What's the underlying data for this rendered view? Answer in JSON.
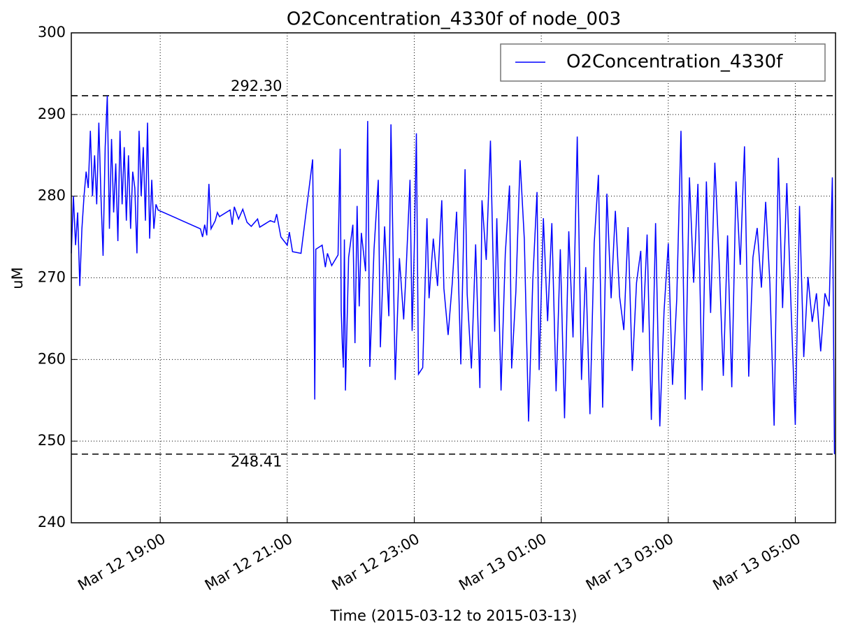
{
  "chart_data": {
    "type": "line",
    "title": "O2Concentration_4330f of node_003",
    "xlabel": "Time (2015-03-12 to 2015-03-13)",
    "ylabel": "uM",
    "ylim": [
      240,
      300
    ],
    "yticks": [
      240,
      250,
      260,
      270,
      280,
      290,
      300
    ],
    "xlim": [
      "2015-03-12 17:36",
      "2015-03-13 05:38"
    ],
    "xticks": [
      {
        "value": "2015-03-12 19:00",
        "label": "Mar 12 19:00"
      },
      {
        "value": "2015-03-12 21:00",
        "label": "Mar 12 21:00"
      },
      {
        "value": "2015-03-12 23:00",
        "label": "Mar 12 23:00"
      },
      {
        "value": "2015-03-13 01:00",
        "label": "Mar 13 01:00"
      },
      {
        "value": "2015-03-13 03:00",
        "label": "Mar 13 03:00"
      },
      {
        "value": "2015-03-13 05:00",
        "label": "Mar 13 05:00"
      }
    ],
    "grid": true,
    "legend": "upper right",
    "hlines": [
      {
        "value": 292.3,
        "label": "292.30"
      },
      {
        "value": 248.41,
        "label": "248.41"
      }
    ],
    "x": [
      "2015-03-12 17:36",
      "2015-03-12 17:38",
      "2015-03-12 17:40",
      "2015-03-12 17:42",
      "2015-03-12 17:44",
      "2015-03-12 17:46",
      "2015-03-12 17:48",
      "2015-03-12 17:50",
      "2015-03-12 17:52",
      "2015-03-12 17:54",
      "2015-03-12 17:56",
      "2015-03-12 17:58",
      "2015-03-12 18:00",
      "2015-03-12 18:02",
      "2015-03-12 18:04",
      "2015-03-12 18:06",
      "2015-03-12 18:08",
      "2015-03-12 18:10",
      "2015-03-12 18:12",
      "2015-03-12 18:14",
      "2015-03-12 18:16",
      "2015-03-12 18:18",
      "2015-03-12 18:20",
      "2015-03-12 18:22",
      "2015-03-12 18:24",
      "2015-03-12 18:26",
      "2015-03-12 18:28",
      "2015-03-12 18:30",
      "2015-03-12 18:32",
      "2015-03-12 18:34",
      "2015-03-12 18:36",
      "2015-03-12 18:38",
      "2015-03-12 18:40",
      "2015-03-12 18:42",
      "2015-03-12 18:44",
      "2015-03-12 18:46",
      "2015-03-12 18:48",
      "2015-03-12 18:50",
      "2015-03-12 18:52",
      "2015-03-12 18:54",
      "2015-03-12 18:56",
      "2015-03-12 18:58",
      "2015-03-12 19:38",
      "2015-03-12 19:40",
      "2015-03-12 19:42",
      "2015-03-12 19:44",
      "2015-03-12 19:46",
      "2015-03-12 19:48",
      "2015-03-12 19:52",
      "2015-03-12 19:54",
      "2015-03-12 19:56",
      "2015-03-12 20:06",
      "2015-03-12 20:08",
      "2015-03-12 20:10",
      "2015-03-12 20:14",
      "2015-03-12 20:18",
      "2015-03-12 20:22",
      "2015-03-12 20:26",
      "2015-03-12 20:32",
      "2015-03-12 20:34",
      "2015-03-12 20:44",
      "2015-03-12 20:48",
      "2015-03-12 20:50",
      "2015-03-12 20:54",
      "2015-03-12 21:00",
      "2015-03-12 21:02",
      "2015-03-12 21:05",
      "2015-03-12 21:13",
      "2015-03-12 21:24",
      "2015-03-12 21:25",
      "2015-03-12 21:26",
      "2015-03-12 21:27",
      "2015-03-12 21:33",
      "2015-03-12 21:36",
      "2015-03-12 21:38",
      "2015-03-12 21:42",
      "2015-03-12 21:48",
      "2015-03-12 21:50",
      "2015-03-12 21:51",
      "2015-03-12 21:52",
      "2015-03-12 21:53",
      "2015-03-12 21:54",
      "2015-03-12 21:55",
      "2015-03-12 21:58",
      "2015-03-12 22:02",
      "2015-03-12 22:04",
      "2015-03-12 22:06",
      "2015-03-12 22:08",
      "2015-03-12 22:10",
      "2015-03-12 22:14",
      "2015-03-12 22:16",
      "2015-03-12 22:18",
      "2015-03-12 22:22",
      "2015-03-12 22:26",
      "2015-03-12 22:28",
      "2015-03-12 22:32",
      "2015-03-12 22:36",
      "2015-03-12 22:38",
      "2015-03-12 22:42",
      "2015-03-12 22:46",
      "2015-03-12 22:50",
      "2015-03-12 22:52",
      "2015-03-12 22:56",
      "2015-03-12 22:58",
      "2015-03-12 23:00",
      "2015-03-12 23:02",
      "2015-03-12 23:04",
      "2015-03-12 23:08",
      "2015-03-12 23:12",
      "2015-03-12 23:14",
      "2015-03-12 23:18",
      "2015-03-12 23:22",
      "2015-03-12 23:26",
      "2015-03-12 23:28",
      "2015-03-12 23:32",
      "2015-03-12 23:36",
      "2015-03-12 23:40",
      "2015-03-12 23:44",
      "2015-03-12 23:48",
      "2015-03-12 23:50",
      "2015-03-12 23:54",
      "2015-03-12 23:58",
      "2015-03-13 00:02",
      "2015-03-13 00:04",
      "2015-03-13 00:08",
      "2015-03-13 00:12",
      "2015-03-13 00:16",
      "2015-03-13 00:18",
      "2015-03-13 00:22",
      "2015-03-13 00:26",
      "2015-03-13 00:30",
      "2015-03-13 00:32",
      "2015-03-13 00:36",
      "2015-03-13 00:40",
      "2015-03-13 00:44",
      "2015-03-13 00:48",
      "2015-03-13 00:52",
      "2015-03-13 00:56",
      "2015-03-13 00:58",
      "2015-03-13 01:02",
      "2015-03-13 01:06",
      "2015-03-13 01:10",
      "2015-03-13 01:14",
      "2015-03-13 01:18",
      "2015-03-13 01:22",
      "2015-03-13 01:26",
      "2015-03-13 01:30",
      "2015-03-13 01:34",
      "2015-03-13 01:38",
      "2015-03-13 01:42",
      "2015-03-13 01:46",
      "2015-03-13 01:50",
      "2015-03-13 01:54",
      "2015-03-13 01:58",
      "2015-03-13 02:02",
      "2015-03-13 02:06",
      "2015-03-13 02:10",
      "2015-03-13 02:14",
      "2015-03-13 02:18",
      "2015-03-13 02:22",
      "2015-03-13 02:26",
      "2015-03-13 02:30",
      "2015-03-13 02:34",
      "2015-03-13 02:36",
      "2015-03-13 02:40",
      "2015-03-13 02:44",
      "2015-03-13 02:48",
      "2015-03-13 02:52",
      "2015-03-13 02:56",
      "2015-03-13 03:00",
      "2015-03-13 03:04",
      "2015-03-13 03:08",
      "2015-03-13 03:12",
      "2015-03-13 03:16",
      "2015-03-13 03:20",
      "2015-03-13 03:24",
      "2015-03-13 03:28",
      "2015-03-13 03:32",
      "2015-03-13 03:36",
      "2015-03-13 03:40",
      "2015-03-13 03:44",
      "2015-03-13 03:48",
      "2015-03-13 03:52",
      "2015-03-13 03:56",
      "2015-03-13 04:00",
      "2015-03-13 04:04",
      "2015-03-13 04:08",
      "2015-03-13 04:12",
      "2015-03-13 04:16",
      "2015-03-13 04:20",
      "2015-03-13 04:24",
      "2015-03-13 04:28",
      "2015-03-13 04:32",
      "2015-03-13 04:36",
      "2015-03-13 04:40",
      "2015-03-13 04:44",
      "2015-03-13 04:48",
      "2015-03-13 04:52",
      "2015-03-13 04:56",
      "2015-03-13 05:00",
      "2015-03-13 05:04",
      "2015-03-13 05:08",
      "2015-03-13 05:12",
      "2015-03-13 05:16",
      "2015-03-13 05:20",
      "2015-03-13 05:24",
      "2015-03-13 05:28",
      "2015-03-13 05:32",
      "2015-03-13 05:35",
      "2015-03-13 05:37"
    ],
    "series": [
      {
        "name": "O2Concentration_4330f",
        "color": "#0000ff",
        "values": [
          273,
          280,
          274,
          278,
          269,
          276,
          280,
          283,
          281,
          288,
          280,
          285,
          279,
          289,
          280,
          272.7,
          286,
          292.3,
          276,
          287,
          278,
          284,
          274.5,
          288,
          279,
          286,
          277,
          285,
          276,
          283,
          281,
          273,
          288,
          280,
          286,
          277,
          289,
          274.8,
          282,
          276,
          279,
          278.3,
          276,
          275,
          276.5,
          275.2,
          281.5,
          276,
          277,
          278,
          277.5,
          278.3,
          276.5,
          278.7,
          277.2,
          278.4,
          276.8,
          276.3,
          277.2,
          276.2,
          277,
          276.8,
          277.8,
          275,
          274,
          275.6,
          273.2,
          273,
          284.5,
          273,
          255.1,
          273.5,
          274,
          271.3,
          273,
          271.5,
          272.8,
          285.8,
          266,
          262,
          259,
          274.7,
          256.2,
          272.5,
          276.5,
          262,
          278.8,
          266.5,
          275.5,
          270.8,
          289.2,
          259.1,
          273.5,
          282,
          261.5,
          276.3,
          265.3,
          288.8,
          257.5,
          272.4,
          264.9,
          270,
          282,
          263.5,
          273.5,
          287.7,
          258.2,
          259,
          277.3,
          267.5,
          274.8,
          269,
          279.5,
          268.7,
          263,
          269.5,
          278.1,
          259.4,
          283.3,
          268,
          258.9,
          274.1,
          256.5,
          279.5,
          272.2,
          286.8,
          263.4,
          277.3,
          256.2,
          272.9,
          281.3,
          258.9,
          268.3,
          284.4,
          274.7,
          252.4,
          269.7,
          280.5,
          258.7,
          277.3,
          264.7,
          276.7,
          256.1,
          273.5,
          252.8,
          275.7,
          262.7,
          287.3,
          257.5,
          271.3,
          253.3,
          274.2,
          282.6,
          254.1,
          280.3,
          267.5,
          278.2,
          267.7,
          263.6,
          276.2,
          258.6,
          269.4,
          273.3,
          263.3,
          275.3,
          252.6,
          276.7,
          251.8,
          265.9,
          274.2,
          256.9,
          267.4,
          288,
          255.1,
          282.3,
          269.4,
          281.5,
          256.2,
          281.8,
          265.7,
          284.1,
          272.2,
          258,
          275.2,
          256.6,
          281.8,
          271.6,
          286.1,
          257.9,
          272.5,
          276.1,
          268.8,
          279.3,
          269.3,
          251.9,
          284.7,
          266.3,
          281.6,
          266.4,
          252,
          278.8,
          260.3,
          270.1,
          264.6,
          268.1,
          261,
          268.1,
          266.5,
          282.3,
          248.4
        ]
      }
    ]
  }
}
